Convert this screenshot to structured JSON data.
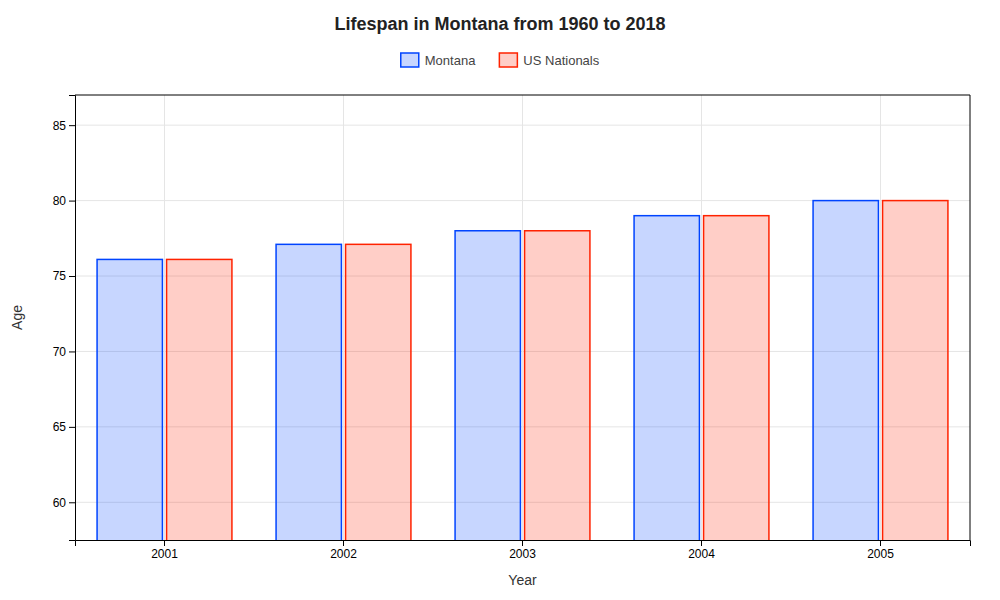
{
  "chart_data": {
    "type": "bar",
    "title": "Lifespan in Montana from 1960 to 2018",
    "xlabel": "Year",
    "ylabel": "Age",
    "categories": [
      "2001",
      "2002",
      "2003",
      "2004",
      "2005"
    ],
    "series": [
      {
        "name": "Montana",
        "color": "#0044ff",
        "values": [
          76.1,
          77.1,
          78.0,
          79.0,
          80.0
        ]
      },
      {
        "name": "US Nationals",
        "color": "#ff2200",
        "values": [
          76.1,
          77.1,
          78.0,
          79.0,
          80.0
        ]
      }
    ],
    "ylim": [
      57.5,
      87
    ],
    "yticks": [
      60,
      65,
      70,
      75,
      80,
      85
    ],
    "grid": true,
    "legend": "top"
  }
}
